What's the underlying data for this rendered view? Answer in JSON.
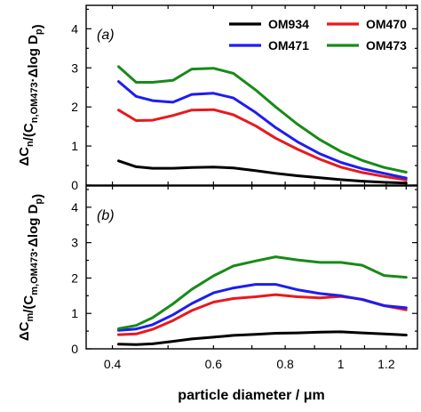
{
  "chart_data": [
    {
      "type": "line",
      "panel_label": "(a)",
      "ylabel": "ΔC_n/(C_n,OM473·Δlog D_p)",
      "ylabel_parts": {
        "main": "ΔC",
        "sub1": "n",
        "mid": "/(C",
        "sub2": "n,OM473",
        "rest": "·Δlog D",
        "sub3": "p",
        "end": ")"
      },
      "ylim": [
        0,
        4.6
      ],
      "yticks": [
        0,
        1,
        2,
        3,
        4
      ],
      "xlim": [
        0.36,
        1.36
      ],
      "x_scale": "log",
      "grid": false,
      "legend": {
        "placement": "top-right",
        "entries": [
          {
            "name": "OM934",
            "color": "#000000"
          },
          {
            "name": "OM470",
            "color": "#e8191d"
          },
          {
            "name": "OM471",
            "color": "#1d1df0"
          },
          {
            "name": "OM473",
            "color": "#188a18"
          }
        ]
      },
      "x": [
        0.41,
        0.44,
        0.47,
        0.51,
        0.55,
        0.6,
        0.65,
        0.71,
        0.77,
        0.84,
        0.92,
        1.0,
        1.09,
        1.19,
        1.3
      ],
      "series": [
        {
          "name": "OM934",
          "color": "#000000",
          "values": [
            0.62,
            0.47,
            0.43,
            0.43,
            0.45,
            0.46,
            0.44,
            0.37,
            0.3,
            0.24,
            0.19,
            0.14,
            0.1,
            0.07,
            0.05
          ]
        },
        {
          "name": "OM470",
          "color": "#e8191d",
          "values": [
            1.92,
            1.65,
            1.66,
            1.78,
            1.92,
            1.93,
            1.8,
            1.52,
            1.2,
            0.92,
            0.66,
            0.46,
            0.32,
            0.22,
            0.13
          ]
        },
        {
          "name": "OM471",
          "color": "#1d1df0",
          "values": [
            2.65,
            2.27,
            2.16,
            2.12,
            2.32,
            2.35,
            2.23,
            1.86,
            1.47,
            1.11,
            0.8,
            0.58,
            0.42,
            0.3,
            0.18
          ]
        },
        {
          "name": "OM473",
          "color": "#188a18",
          "values": [
            3.03,
            2.63,
            2.63,
            2.68,
            2.97,
            2.99,
            2.86,
            2.44,
            2.0,
            1.56,
            1.16,
            0.86,
            0.63,
            0.45,
            0.33
          ]
        }
      ]
    },
    {
      "type": "line",
      "panel_label": "(b)",
      "ylabel": "ΔC_m/(C_m,OM473·Δlog D_p)",
      "ylabel_parts": {
        "main": "ΔC",
        "sub1": "m",
        "mid": "/(C",
        "sub2": "m,OM473",
        "rest": "·Δlog D",
        "sub3": "p",
        "end": ")"
      },
      "xlabel": "particle diameter / μm",
      "ylim": [
        0,
        4.6
      ],
      "yticks": [
        0,
        1,
        2,
        3,
        4
      ],
      "xlim": [
        0.36,
        1.36
      ],
      "x_scale": "log",
      "xticks": [
        0.4,
        0.6,
        0.8,
        1.0,
        1.2
      ],
      "xtick_labels": [
        "0.4",
        "0.6",
        "0.8",
        "1",
        "1.2"
      ],
      "grid": false,
      "x": [
        0.41,
        0.44,
        0.47,
        0.51,
        0.55,
        0.6,
        0.65,
        0.71,
        0.77,
        0.84,
        0.92,
        1.0,
        1.09,
        1.19,
        1.3
      ],
      "series": [
        {
          "name": "OM934",
          "color": "#000000",
          "values": [
            0.13,
            0.12,
            0.14,
            0.21,
            0.28,
            0.33,
            0.38,
            0.41,
            0.44,
            0.45,
            0.47,
            0.48,
            0.45,
            0.42,
            0.39
          ]
        },
        {
          "name": "OM470",
          "color": "#e8191d",
          "values": [
            0.4,
            0.42,
            0.55,
            0.8,
            1.08,
            1.32,
            1.42,
            1.47,
            1.53,
            1.47,
            1.44,
            1.48,
            1.4,
            1.22,
            1.1
          ]
        },
        {
          "name": "OM471",
          "color": "#1d1df0",
          "values": [
            0.52,
            0.56,
            0.68,
            0.96,
            1.28,
            1.58,
            1.72,
            1.82,
            1.82,
            1.67,
            1.56,
            1.5,
            1.39,
            1.22,
            1.16
          ]
        },
        {
          "name": "OM473",
          "color": "#188a18",
          "values": [
            0.57,
            0.66,
            0.88,
            1.27,
            1.68,
            2.06,
            2.34,
            2.48,
            2.6,
            2.51,
            2.44,
            2.44,
            2.36,
            2.07,
            2.02
          ]
        }
      ]
    }
  ]
}
